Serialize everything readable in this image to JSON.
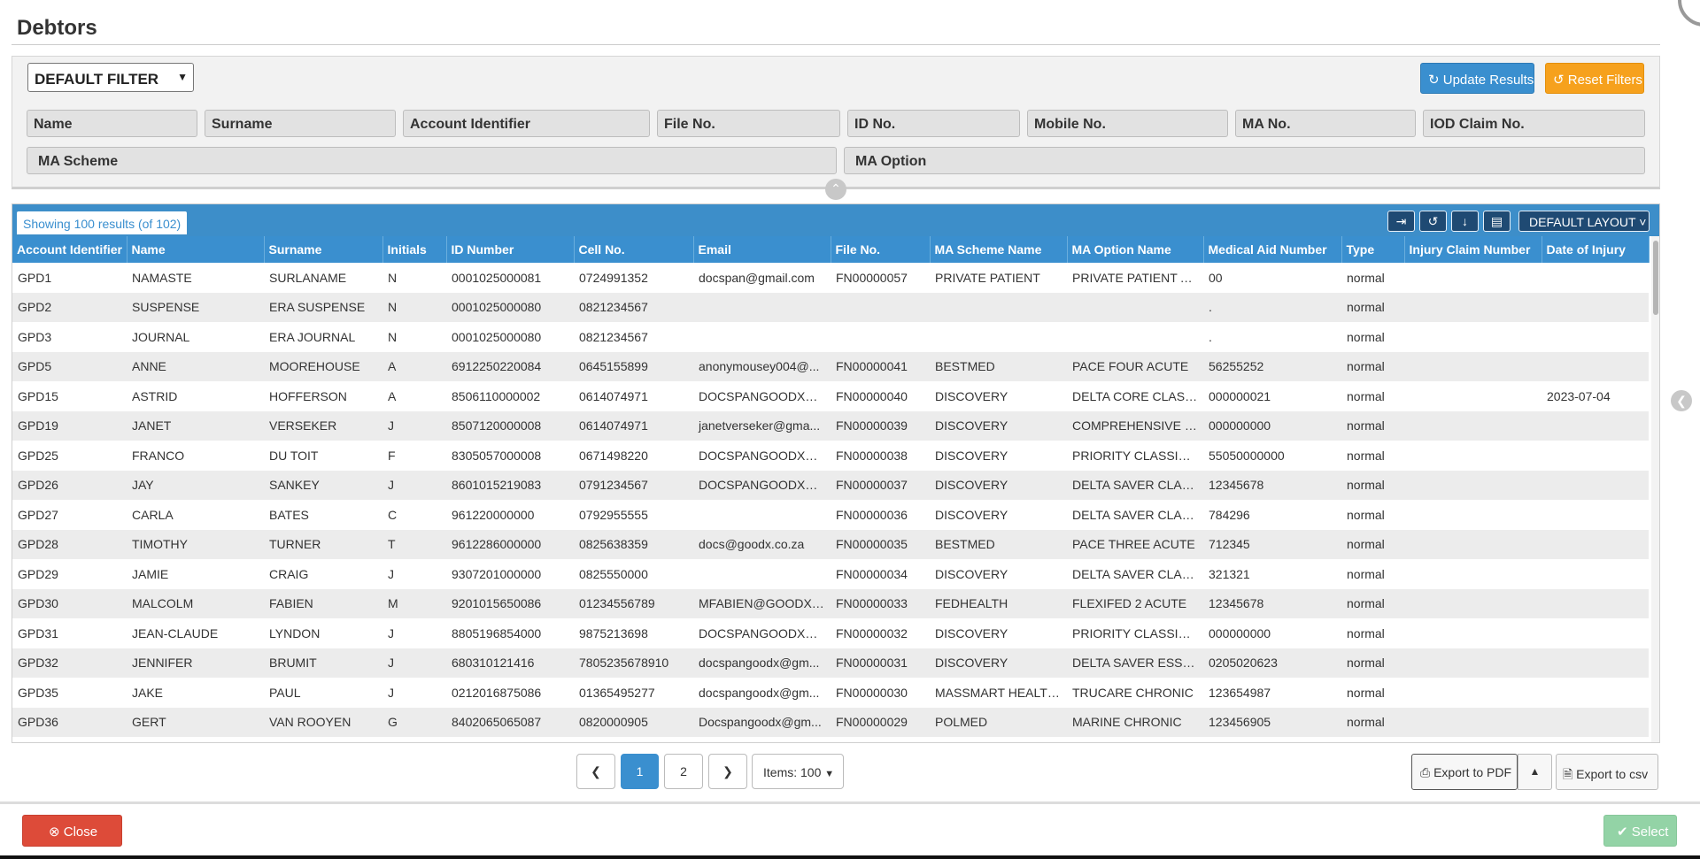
{
  "page": {
    "title": "Debtors"
  },
  "filter": {
    "preset": "DEFAULT FILTER",
    "update_label": "Update Results",
    "reset_label": "Reset Filters",
    "fields": [
      "Name",
      "Surname",
      "Account Identifier",
      "File No.",
      "ID No.",
      "Mobile No.",
      "MA No.",
      "IOD Claim No.",
      "MA Scheme",
      "MA Option"
    ]
  },
  "table": {
    "showing": "Showing 100 results (of 102)",
    "layout_label": "DEFAULT LAYOUT",
    "columns": [
      "Account Identifier",
      "Name",
      "Surname",
      "Initials",
      "ID Number",
      "Cell No.",
      "Email",
      "File No.",
      "MA Scheme Name",
      "MA Option Name",
      "Medical Aid Number",
      "Type",
      "Injury Claim Number",
      "Date of Injury"
    ],
    "rows": [
      [
        "GPD1",
        "NAMASTE",
        "SURLANAME",
        "N",
        "0001025000081",
        "0724991352",
        "docspan@gmail.com",
        "FN00000057",
        "PRIVATE PATIENT",
        "PRIVATE PATIENT AC...",
        "00",
        "normal",
        "",
        ""
      ],
      [
        "GPD2",
        "SUSPENSE",
        "ERA SUSPENSE",
        "N",
        "0001025000080",
        "0821234567",
        "",
        "",
        "",
        "",
        ".",
        "normal",
        "",
        ""
      ],
      [
        "GPD3",
        "JOURNAL",
        "ERA JOURNAL",
        "N",
        "0001025000080",
        "0821234567",
        "",
        "",
        "",
        "",
        ".",
        "normal",
        "",
        ""
      ],
      [
        "GPD5",
        "ANNE",
        "MOOREHOUSE",
        "A",
        "6912250220084",
        "0645155899",
        "anonymousey004@...",
        "FN00000041",
        "BESTMED",
        "PACE FOUR ACUTE",
        "56255252",
        "normal",
        "",
        ""
      ],
      [
        "GPD15",
        "ASTRID",
        "HOFFERSON",
        "A",
        "8506110000002",
        "0614074971",
        "DOCSPANGOODX@...",
        "FN00000040",
        "DISCOVERY",
        "DELTA CORE CLASSI...",
        "000000021",
        "normal",
        "",
        "2023-07-04"
      ],
      [
        "GPD19",
        "JANET",
        "VERSEKER",
        "J",
        "8507120000008",
        "0614074971",
        "janetverseker@gma...",
        "FN00000039",
        "DISCOVERY",
        "COMPREHENSIVE C...",
        "000000000",
        "normal",
        "",
        ""
      ],
      [
        "GPD25",
        "FRANCO",
        "DU TOIT",
        "F",
        "8305057000008",
        "0671498220",
        "DOCSPANGOODX@...",
        "FN00000038",
        "DISCOVERY",
        "PRIORITY CLASSIC A...",
        "55050000000",
        "normal",
        "",
        ""
      ],
      [
        "GPD26",
        "JAY",
        "SANKEY",
        "J",
        "8601015219083",
        "0791234567",
        "DOCSPANGOODX@...",
        "FN00000037",
        "DISCOVERY",
        "DELTA SAVER CLASS...",
        "12345678",
        "normal",
        "",
        ""
      ],
      [
        "GPD27",
        "CARLA",
        "BATES",
        "C",
        "961220000000",
        "0792955555",
        "",
        "FN00000036",
        "DISCOVERY",
        "DELTA SAVER CLASS...",
        "784296",
        "normal",
        "",
        ""
      ],
      [
        "GPD28",
        "TIMOTHY",
        "TURNER",
        "T",
        "9612286000000",
        "0825638359",
        "docs@goodx.co.za",
        "FN00000035",
        "BESTMED",
        "PACE THREE ACUTE",
        "712345",
        "normal",
        "",
        ""
      ],
      [
        "GPD29",
        "JAMIE",
        "CRAIG",
        "J",
        "9307201000000",
        "0825550000",
        "",
        "FN00000034",
        "DISCOVERY",
        "DELTA SAVER CLASS...",
        "321321",
        "normal",
        "",
        ""
      ],
      [
        "GPD30",
        "MALCOLM",
        "FABIEN",
        "M",
        "9201015650086",
        "01234556789",
        "MFABIEN@GOODX.C...",
        "FN00000033",
        "FEDHEALTH",
        "FLEXIFED 2 ACUTE",
        "12345678",
        "normal",
        "",
        ""
      ],
      [
        "GPD31",
        "JEAN-CLAUDE",
        "LYNDON",
        "J",
        "8805196854000",
        "9875213698",
        "DOCSPANGOODX@...",
        "FN00000032",
        "DISCOVERY",
        "PRIORITY CLASSIC A...",
        "000000000",
        "normal",
        "",
        ""
      ],
      [
        "GPD32",
        "JENNIFER",
        "BRUMIT",
        "J",
        "680310121416",
        "7805235678910",
        "docspangoodx@gm...",
        "FN00000031",
        "DISCOVERY",
        "DELTA SAVER ESSEN...",
        "0205020623",
        "normal",
        "",
        ""
      ],
      [
        "GPD35",
        "JAKE",
        "PAUL",
        "J",
        "0212016875086",
        "01365495277",
        "docspangoodx@gm...",
        "FN00000030",
        "MASSMART HEALTH ...",
        "TRUCARE CHRONIC",
        "123654987",
        "normal",
        "",
        ""
      ],
      [
        "GPD36",
        "GERT",
        "VAN ROOYEN",
        "G",
        "8402065065087",
        "0820000905",
        "Docspangoodx@gm...",
        "FN00000029",
        "POLMED",
        "MARINE CHRONIC",
        "123456905",
        "normal",
        "",
        ""
      ]
    ]
  },
  "pagination": {
    "pages": [
      "1",
      "2"
    ],
    "current": "1",
    "items_label": "Items: 100",
    "prev_icon": "chevron-left-icon",
    "next_icon": "chevron-right-icon"
  },
  "export": {
    "pdf_label": "Export to PDF",
    "csv_label": "Export to csv"
  },
  "footer": {
    "close_label": "Close",
    "select_label": "Select"
  },
  "colors": {
    "primary": "#3a8fcf",
    "warning": "#f6a11d",
    "danger": "#dd4b39",
    "success": "#93d3a6",
    "toolbar_dark": "#1f4a73"
  }
}
